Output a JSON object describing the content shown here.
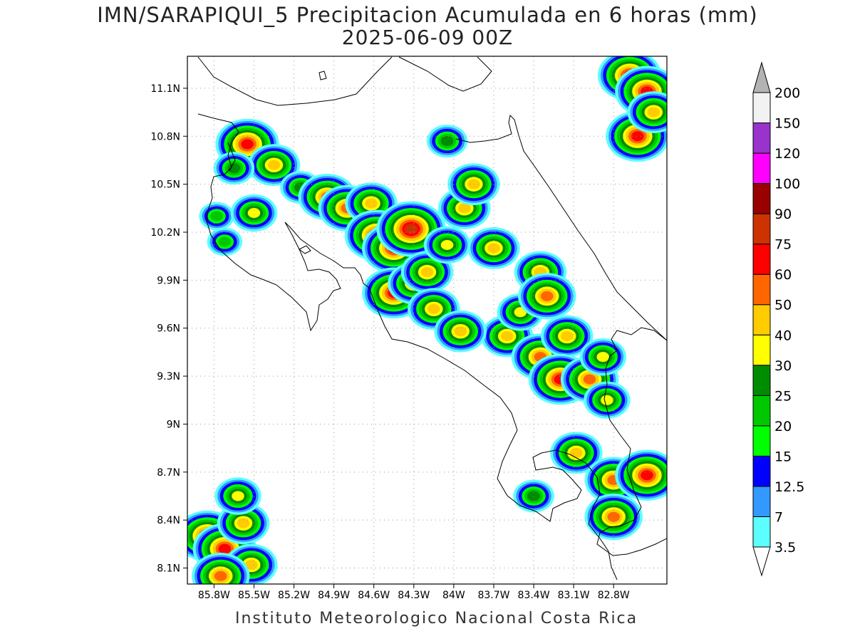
{
  "title": "IMN/SARAPIQUI_5 Precipitacion Acumulada en 6 horas (mm)",
  "subtitle": "2025-06-09 00Z",
  "footer": "Instituto Meteorologico Nacional Costa Rica",
  "map": {
    "lon_range": [
      -86.0,
      -82.4
    ],
    "lat_range": [
      8.0,
      11.3
    ],
    "x_ticks": [
      "85.8W",
      "85.5W",
      "85.2W",
      "84.9W",
      "84.6W",
      "84.3W",
      "84W",
      "83.7W",
      "83.4W",
      "83.1W",
      "82.8W"
    ],
    "x_tick_values": [
      -85.8,
      -85.5,
      -85.2,
      -84.9,
      -84.6,
      -84.3,
      -84.0,
      -83.7,
      -83.4,
      -83.1,
      -82.8
    ],
    "y_ticks": [
      "11.1N",
      "10.8N",
      "10.5N",
      "10.2N",
      "9.9N",
      "9.6N",
      "9.3N",
      "9N",
      "8.7N",
      "8.4N",
      "8.1N"
    ],
    "y_tick_values": [
      11.1,
      10.8,
      10.5,
      10.2,
      9.9,
      9.6,
      9.3,
      9.0,
      8.7,
      8.4,
      8.1
    ],
    "grid": "dotted"
  },
  "legend": {
    "labels": [
      "3.5",
      "7",
      "12.5",
      "15",
      "20",
      "25",
      "30",
      "40",
      "50",
      "60",
      "75",
      "90",
      "100",
      "120",
      "150",
      "200"
    ],
    "colors": [
      "#ffffff",
      "#5cffff",
      "#3399ff",
      "#0000ff",
      "#00ff00",
      "#00c800",
      "#008c00",
      "#ffff00",
      "#ffcc00",
      "#ff6600",
      "#ff0000",
      "#cc3300",
      "#990000",
      "#ff00ff",
      "#9933cc",
      "#f2f2f2",
      "#b3b3b3"
    ]
  },
  "precip_cells": [
    {
      "lon": -85.55,
      "lat": 10.75,
      "max": 60
    },
    {
      "lon": -85.35,
      "lat": 10.62,
      "max": 40
    },
    {
      "lon": -85.65,
      "lat": 10.6,
      "max": 25
    },
    {
      "lon": -85.15,
      "lat": 10.48,
      "max": 25
    },
    {
      "lon": -84.95,
      "lat": 10.42,
      "max": 50
    },
    {
      "lon": -84.8,
      "lat": 10.35,
      "max": 50
    },
    {
      "lon": -84.62,
      "lat": 10.38,
      "max": 40
    },
    {
      "lon": -84.58,
      "lat": 10.18,
      "max": 60
    },
    {
      "lon": -84.45,
      "lat": 10.1,
      "max": 60
    },
    {
      "lon": -84.32,
      "lat": 10.22,
      "max": 75
    },
    {
      "lon": -84.45,
      "lat": 9.82,
      "max": 60
    },
    {
      "lon": -84.3,
      "lat": 9.88,
      "max": 40
    },
    {
      "lon": -84.2,
      "lat": 9.95,
      "max": 40
    },
    {
      "lon": -84.15,
      "lat": 9.72,
      "max": 40
    },
    {
      "lon": -84.05,
      "lat": 10.12,
      "max": 30
    },
    {
      "lon": -83.92,
      "lat": 10.35,
      "max": 40
    },
    {
      "lon": -83.85,
      "lat": 10.5,
      "max": 40
    },
    {
      "lon": -83.7,
      "lat": 10.1,
      "max": 40
    },
    {
      "lon": -83.6,
      "lat": 9.55,
      "max": 40
    },
    {
      "lon": -83.95,
      "lat": 9.58,
      "max": 40
    },
    {
      "lon": -83.5,
      "lat": 9.7,
      "max": 30
    },
    {
      "lon": -83.35,
      "lat": 9.95,
      "max": 40
    },
    {
      "lon": -83.3,
      "lat": 9.8,
      "max": 50
    },
    {
      "lon": -83.35,
      "lat": 9.42,
      "max": 50
    },
    {
      "lon": -83.15,
      "lat": 9.55,
      "max": 40
    },
    {
      "lon": -83.2,
      "lat": 9.28,
      "max": 60
    },
    {
      "lon": -82.98,
      "lat": 9.28,
      "max": 50
    },
    {
      "lon": -82.88,
      "lat": 9.42,
      "max": 30
    },
    {
      "lon": -82.85,
      "lat": 9.15,
      "max": 30
    },
    {
      "lon": -83.08,
      "lat": 8.82,
      "max": 40
    },
    {
      "lon": -82.8,
      "lat": 8.65,
      "max": 50
    },
    {
      "lon": -82.55,
      "lat": 8.68,
      "max": 60
    },
    {
      "lon": -82.8,
      "lat": 8.42,
      "max": 50
    },
    {
      "lon": -83.4,
      "lat": 8.55,
      "max": 25
    },
    {
      "lon": -82.68,
      "lat": 11.18,
      "max": 60
    },
    {
      "lon": -82.55,
      "lat": 11.08,
      "max": 60
    },
    {
      "lon": -82.62,
      "lat": 10.8,
      "max": 60
    },
    {
      "lon": -82.5,
      "lat": 10.95,
      "max": 40
    },
    {
      "lon": -85.85,
      "lat": 8.3,
      "max": 60
    },
    {
      "lon": -85.72,
      "lat": 8.22,
      "max": 60
    },
    {
      "lon": -85.58,
      "lat": 8.38,
      "max": 40
    },
    {
      "lon": -85.52,
      "lat": 8.12,
      "max": 40
    },
    {
      "lon": -85.62,
      "lat": 8.55,
      "max": 30
    },
    {
      "lon": -85.75,
      "lat": 8.05,
      "max": 50
    },
    {
      "lon": -84.05,
      "lat": 10.77,
      "max": 25
    },
    {
      "lon": -85.78,
      "lat": 10.3,
      "max": 20
    },
    {
      "lon": -85.72,
      "lat": 10.14,
      "max": 20
    },
    {
      "lon": -85.5,
      "lat": 10.32,
      "max": 30
    }
  ]
}
